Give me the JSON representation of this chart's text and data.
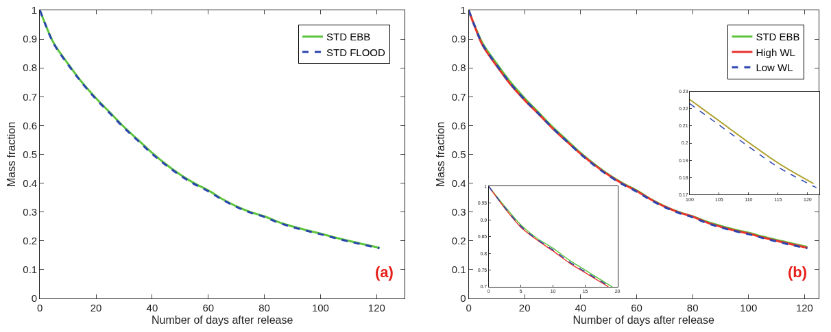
{
  "chart_data": [
    {
      "type": "line",
      "xlabel": "Number of days after release",
      "ylabel": "Mass fraction",
      "xlim": [
        0,
        130
      ],
      "xticks": [
        0,
        20,
        40,
        60,
        80,
        100,
        120
      ],
      "ylim": [
        0,
        1
      ],
      "yticks": [
        0,
        0.1,
        0.2,
        0.3,
        0.4,
        0.5,
        0.6,
        0.7,
        0.8,
        0.9,
        1
      ],
      "legend": "top right",
      "annotations": [
        "(a)"
      ],
      "x": [
        0,
        2,
        5,
        10,
        15,
        20,
        25,
        30,
        35,
        40,
        45,
        50,
        55,
        60,
        65,
        70,
        75,
        80,
        85,
        90,
        95,
        100,
        105,
        110,
        115,
        121
      ],
      "series": [
        {
          "name": "STD EBB",
          "color": "#5cc43c",
          "line_style": "solid",
          "values": [
            1.0,
            0.95,
            0.885,
            0.815,
            0.75,
            0.695,
            0.645,
            0.595,
            0.55,
            0.505,
            0.465,
            0.43,
            0.4,
            0.375,
            0.345,
            0.32,
            0.3,
            0.285,
            0.265,
            0.25,
            0.237,
            0.225,
            0.212,
            0.2,
            0.189,
            0.176
          ]
        },
        {
          "name": "STD FLOOD",
          "color": "#2b44b0",
          "line_style": "dashed",
          "values": [
            1.0,
            0.95,
            0.883,
            0.812,
            0.748,
            0.692,
            0.642,
            0.592,
            0.547,
            0.502,
            0.462,
            0.427,
            0.397,
            0.372,
            0.343,
            0.318,
            0.298,
            0.283,
            0.263,
            0.248,
            0.235,
            0.223,
            0.21,
            0.198,
            0.187,
            0.174
          ]
        }
      ]
    },
    {
      "type": "line",
      "xlabel": "Number of days after release",
      "ylabel": "Mass fraction",
      "xlim": [
        0,
        125
      ],
      "xticks": [
        0,
        20,
        40,
        60,
        80,
        100,
        120
      ],
      "ylim": [
        0,
        1
      ],
      "yticks": [
        0,
        0.1,
        0.2,
        0.3,
        0.4,
        0.5,
        0.6,
        0.7,
        0.8,
        0.9,
        1
      ],
      "legend": "top right",
      "annotations": [
        "(b)"
      ],
      "x": [
        0,
        2,
        5,
        10,
        15,
        20,
        25,
        30,
        35,
        40,
        45,
        50,
        55,
        60,
        65,
        70,
        75,
        80,
        85,
        90,
        95,
        100,
        105,
        110,
        115,
        121
      ],
      "series": [
        {
          "name": "STD EBB",
          "color": "#5cc43c",
          "line_style": "solid",
          "values": [
            1.0,
            0.95,
            0.885,
            0.815,
            0.75,
            0.695,
            0.645,
            0.595,
            0.55,
            0.505,
            0.465,
            0.43,
            0.4,
            0.375,
            0.345,
            0.32,
            0.3,
            0.285,
            0.267,
            0.252,
            0.239,
            0.228,
            0.215,
            0.203,
            0.192,
            0.179
          ]
        },
        {
          "name": "High WL",
          "color": "#e8332e",
          "line_style": "solid",
          "values": [
            1.0,
            0.948,
            0.878,
            0.807,
            0.742,
            0.688,
            0.64,
            0.59,
            0.545,
            0.502,
            0.463,
            0.428,
            0.398,
            0.373,
            0.344,
            0.319,
            0.299,
            0.284,
            0.264,
            0.249,
            0.236,
            0.225,
            0.212,
            0.2,
            0.189,
            0.176
          ]
        },
        {
          "name": "Low WL",
          "color": "#2b44b0",
          "line_style": "dashed",
          "values": [
            1.0,
            0.949,
            0.881,
            0.81,
            0.745,
            0.69,
            0.641,
            0.591,
            0.546,
            0.501,
            0.461,
            0.426,
            0.396,
            0.371,
            0.342,
            0.317,
            0.297,
            0.282,
            0.262,
            0.247,
            0.234,
            0.223,
            0.21,
            0.198,
            0.186,
            0.174
          ]
        }
      ]
    },
    {
      "type": "line",
      "xlim": [
        0,
        20
      ],
      "xticks": [
        0,
        5,
        10,
        15,
        20
      ],
      "ylim": [
        0.7,
        1
      ],
      "yticks": [
        0.7,
        0.75,
        0.8,
        0.85,
        0.9,
        0.95,
        1
      ],
      "series": [
        {
          "color": "#5cc43c",
          "line_style": "solid",
          "x": [
            0,
            2.5,
            5,
            7.5,
            10,
            12.5,
            15,
            17.5,
            19.2
          ],
          "values": [
            1.0,
            0.94,
            0.885,
            0.845,
            0.815,
            0.78,
            0.75,
            0.72,
            0.7
          ]
        },
        {
          "color": "#e8332e",
          "line_style": "solid",
          "x": [
            0,
            2.5,
            5,
            7.5,
            10,
            12.5,
            15,
            17.5,
            18.6
          ],
          "values": [
            1.0,
            0.935,
            0.878,
            0.84,
            0.807,
            0.772,
            0.742,
            0.713,
            0.7
          ]
        },
        {
          "color": "#2b44b0",
          "line_style": "dashed",
          "x": [
            0,
            2.5,
            5,
            7.5,
            10,
            12.5,
            15,
            17.5,
            18.8
          ],
          "values": [
            1.0,
            0.937,
            0.881,
            0.842,
            0.81,
            0.775,
            0.745,
            0.716,
            0.7
          ]
        }
      ]
    },
    {
      "type": "line",
      "xlim": [
        100,
        122
      ],
      "xticks": [
        100,
        105,
        110,
        115,
        120
      ],
      "ylim": [
        0.17,
        0.23
      ],
      "yticks": [
        0.17,
        0.18,
        0.19,
        0.2,
        0.21,
        0.22,
        0.23
      ],
      "series": [
        {
          "color": "#5cc43c",
          "line_style": "solid",
          "x": [
            100,
            105,
            110,
            115,
            121
          ],
          "values": [
            0.2255,
            0.213,
            0.2005,
            0.1885,
            0.1765
          ]
        },
        {
          "color": "#c8962e",
          "line_style": "solid",
          "x": [
            100,
            105,
            110,
            115,
            121
          ],
          "values": [
            0.2253,
            0.2128,
            0.2003,
            0.1883,
            0.1763
          ]
        },
        {
          "color": "#2b44b0",
          "line_style": "dashed",
          "x": [
            100,
            105,
            110,
            115,
            121.5
          ],
          "values": [
            0.223,
            0.2105,
            0.198,
            0.186,
            0.174
          ]
        }
      ]
    }
  ]
}
